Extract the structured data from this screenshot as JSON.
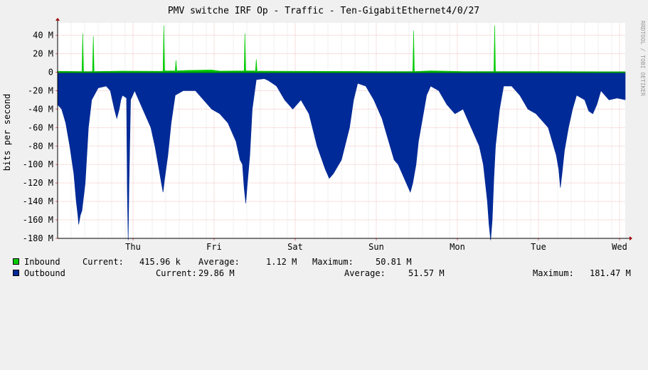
{
  "chart_data": {
    "type": "area",
    "title": "PMV switche IRF Op - Traffic - Ten-GigabitEthernet4/0/27",
    "ylabel": "bits per second",
    "watermark": "RRDTOOL / TOBI OETIKER",
    "ylim": [
      -180000000,
      50000000
    ],
    "y_ticks": [
      {
        "value": 40000000,
        "label": "40 M"
      },
      {
        "value": 20000000,
        "label": "20 M"
      },
      {
        "value": 0,
        "label": "0"
      },
      {
        "value": -20000000,
        "label": "-20 M"
      },
      {
        "value": -40000000,
        "label": "-40 M"
      },
      {
        "value": -60000000,
        "label": "-60 M"
      },
      {
        "value": -80000000,
        "label": "-80 M"
      },
      {
        "value": -100000000,
        "label": "-100 M"
      },
      {
        "value": -120000000,
        "label": "-120 M"
      },
      {
        "value": -140000000,
        "label": "-140 M"
      },
      {
        "value": -160000000,
        "label": "-160 M"
      },
      {
        "value": -180000000,
        "label": "-180 M"
      }
    ],
    "x_ticks": [
      {
        "day": 1,
        "label": "Thu"
      },
      {
        "day": 2,
        "label": "Fri"
      },
      {
        "day": 3,
        "label": "Sat"
      },
      {
        "day": 4,
        "label": "Sun"
      },
      {
        "day": 5,
        "label": "Mon"
      },
      {
        "day": 6,
        "label": "Tue"
      },
      {
        "day": 7,
        "label": "Wed"
      }
    ],
    "xlim_days": [
      0,
      7
    ],
    "grid": true,
    "series": [
      {
        "name": "Inbound",
        "color": "#00cc00",
        "sign": 1,
        "points": [
          [
            0.0,
            1.0
          ],
          [
            0.3,
            0.8
          ],
          [
            0.31,
            42
          ],
          [
            0.32,
            0.8
          ],
          [
            0.43,
            0.8
          ],
          [
            0.44,
            39
          ],
          [
            0.45,
            0.8
          ],
          [
            0.8,
            1.2
          ],
          [
            1.3,
            1.0
          ],
          [
            1.31,
            50.8
          ],
          [
            1.32,
            1.5
          ],
          [
            1.45,
            1.5
          ],
          [
            1.46,
            13
          ],
          [
            1.47,
            1.5
          ],
          [
            1.6,
            2
          ],
          [
            1.9,
            2.5
          ],
          [
            2.0,
            1.2
          ],
          [
            2.3,
            1.5
          ],
          [
            2.31,
            42
          ],
          [
            2.32,
            1.5
          ],
          [
            2.44,
            1.5
          ],
          [
            2.45,
            14
          ],
          [
            2.46,
            1.2
          ],
          [
            3.0,
            1.0
          ],
          [
            4.0,
            0.8
          ],
          [
            4.38,
            0.8
          ],
          [
            4.39,
            45
          ],
          [
            4.4,
            0.8
          ],
          [
            4.6,
            1.5
          ],
          [
            5.0,
            0.8
          ],
          [
            5.38,
            0.8
          ],
          [
            5.39,
            50.8
          ],
          [
            5.4,
            0.8
          ],
          [
            6.0,
            0.8
          ],
          [
            7.0,
            0.5
          ]
        ]
      },
      {
        "name": "Outbound",
        "color": "#002a97",
        "sign": -1,
        "points": [
          [
            0.0,
            35
          ],
          [
            0.05,
            40
          ],
          [
            0.1,
            55
          ],
          [
            0.15,
            80
          ],
          [
            0.2,
            110
          ],
          [
            0.23,
            140
          ],
          [
            0.25,
            155
          ],
          [
            0.26,
            165
          ],
          [
            0.28,
            155
          ],
          [
            0.3,
            150
          ],
          [
            0.34,
            120
          ],
          [
            0.38,
            60
          ],
          [
            0.42,
            30
          ],
          [
            0.5,
            17
          ],
          [
            0.6,
            15
          ],
          [
            0.65,
            20
          ],
          [
            0.7,
            40
          ],
          [
            0.73,
            50
          ],
          [
            0.76,
            40
          ],
          [
            0.78,
            30
          ],
          [
            0.8,
            25
          ],
          [
            0.85,
            28
          ],
          [
            0.86,
            130
          ],
          [
            0.87,
            182
          ],
          [
            0.88,
            125
          ],
          [
            0.9,
            30
          ],
          [
            0.95,
            20
          ],
          [
            1.0,
            30
          ],
          [
            1.05,
            40
          ],
          [
            1.1,
            50
          ],
          [
            1.15,
            60
          ],
          [
            1.2,
            80
          ],
          [
            1.24,
            100
          ],
          [
            1.28,
            120
          ],
          [
            1.3,
            130
          ],
          [
            1.32,
            115
          ],
          [
            1.36,
            90
          ],
          [
            1.4,
            55
          ],
          [
            1.45,
            25
          ],
          [
            1.55,
            20
          ],
          [
            1.7,
            20
          ],
          [
            1.8,
            30
          ],
          [
            1.9,
            40
          ],
          [
            2.0,
            45
          ],
          [
            2.1,
            55
          ],
          [
            2.2,
            75
          ],
          [
            2.25,
            95
          ],
          [
            2.28,
            100
          ],
          [
            2.3,
            125
          ],
          [
            2.32,
            142
          ],
          [
            2.34,
            120
          ],
          [
            2.37,
            90
          ],
          [
            2.4,
            40
          ],
          [
            2.45,
            8
          ],
          [
            2.55,
            7
          ],
          [
            2.6,
            9
          ],
          [
            2.7,
            15
          ],
          [
            2.8,
            30
          ],
          [
            2.9,
            40
          ],
          [
            3.0,
            30
          ],
          [
            3.1,
            45
          ],
          [
            3.2,
            80
          ],
          [
            3.3,
            105
          ],
          [
            3.35,
            115
          ],
          [
            3.4,
            110
          ],
          [
            3.5,
            95
          ],
          [
            3.6,
            60
          ],
          [
            3.65,
            30
          ],
          [
            3.7,
            12
          ],
          [
            3.8,
            15
          ],
          [
            3.9,
            30
          ],
          [
            4.0,
            50
          ],
          [
            4.1,
            80
          ],
          [
            4.15,
            95
          ],
          [
            4.2,
            100
          ],
          [
            4.25,
            110
          ],
          [
            4.3,
            120
          ],
          [
            4.35,
            130
          ],
          [
            4.38,
            120
          ],
          [
            4.42,
            100
          ],
          [
            4.45,
            75
          ],
          [
            4.5,
            50
          ],
          [
            4.55,
            25
          ],
          [
            4.6,
            15
          ],
          [
            4.7,
            20
          ],
          [
            4.8,
            35
          ],
          [
            4.9,
            45
          ],
          [
            5.0,
            40
          ],
          [
            5.05,
            50
          ],
          [
            5.1,
            60
          ],
          [
            5.2,
            80
          ],
          [
            5.25,
            100
          ],
          [
            5.3,
            140
          ],
          [
            5.32,
            165
          ],
          [
            5.34,
            182
          ],
          [
            5.36,
            160
          ],
          [
            5.38,
            115
          ],
          [
            5.4,
            80
          ],
          [
            5.45,
            40
          ],
          [
            5.5,
            15
          ],
          [
            5.6,
            15
          ],
          [
            5.7,
            25
          ],
          [
            5.8,
            40
          ],
          [
            5.9,
            45
          ],
          [
            6.0,
            55
          ],
          [
            6.05,
            60
          ],
          [
            6.1,
            75
          ],
          [
            6.15,
            90
          ],
          [
            6.18,
            105
          ],
          [
            6.2,
            125
          ],
          [
            6.22,
            110
          ],
          [
            6.25,
            85
          ],
          [
            6.3,
            60
          ],
          [
            6.35,
            40
          ],
          [
            6.4,
            25
          ],
          [
            6.5,
            30
          ],
          [
            6.55,
            42
          ],
          [
            6.6,
            45
          ],
          [
            6.65,
            35
          ],
          [
            6.7,
            20
          ],
          [
            6.8,
            30
          ],
          [
            6.9,
            28
          ],
          [
            7.0,
            29.86
          ]
        ]
      }
    ],
    "legend": [
      {
        "name": "Inbound",
        "color": "#00cc00",
        "current": "415.96 k",
        "average": "1.12 M",
        "maximum": "50.81 M"
      },
      {
        "name": "Outbound",
        "color": "#002a97",
        "current": "29.86 M",
        "average": "51.57 M",
        "maximum": "181.47 M"
      }
    ]
  },
  "legend_text": {
    "current_label": "Current:",
    "average_label": "Average:",
    "maximum_label": "Maximum:"
  }
}
